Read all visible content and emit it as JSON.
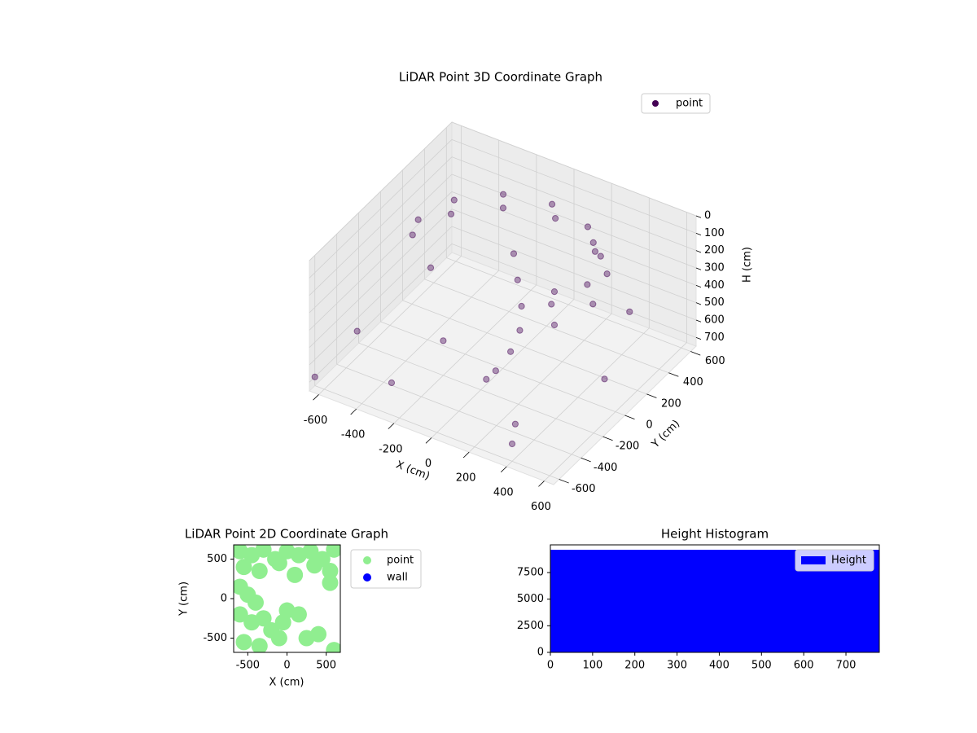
{
  "chart_data": [
    {
      "type": "scatter3d",
      "title": "LiDAR Point 3D Coordinate Graph",
      "xlabel": "X (cm)",
      "ylabel": "Y (cm)",
      "zlabel": "H (cm)",
      "xlim": [
        -650,
        650
      ],
      "ylim": [
        -650,
        650
      ],
      "zlim": [
        750,
        0
      ],
      "xticks": [
        -600,
        -400,
        -200,
        0,
        200,
        400,
        600
      ],
      "yticks": [
        -600,
        -400,
        -200,
        0,
        200,
        400,
        600
      ],
      "zticks": [
        0,
        100,
        200,
        300,
        400,
        500,
        600,
        700
      ],
      "legend": "upper right",
      "series": [
        {
          "name": "point",
          "color": "#440154",
          "x": [
            -450,
            -390,
            -225,
            0,
            225,
            390,
            450,
            390,
            -480,
            -415,
            -240,
            0,
            240,
            415,
            480,
            415,
            0,
            50,
            100,
            120,
            100,
            50,
            0,
            -600,
            -500,
            300,
            500,
            -300,
            200,
            600,
            -650,
            400,
            -200,
            100
          ],
          "y": [
            0,
            225,
            390,
            450,
            390,
            225,
            0,
            -225,
            0,
            240,
            415,
            480,
            415,
            240,
            0,
            -240,
            100,
            50,
            0,
            -50,
            -100,
            -150,
            -150,
            -300,
            200,
            -400,
            300,
            -500,
            500,
            -100,
            -600,
            -600,
            -200,
            300
          ],
          "z": [
            80,
            80,
            80,
            80,
            80,
            80,
            80,
            80,
            180,
            180,
            180,
            180,
            180,
            180,
            180,
            180,
            150,
            250,
            350,
            450,
            550,
            650,
            720,
            600,
            500,
            700,
            400,
            650,
            300,
            500,
            700,
            650,
            550,
            450
          ]
        }
      ]
    },
    {
      "type": "scatter",
      "title": "LiDAR Point 2D Coordinate Graph",
      "xlabel": "X (cm)",
      "ylabel": "Y (cm)",
      "xlim": [
        -680,
        680
      ],
      "ylim": [
        -680,
        680
      ],
      "xticks": [
        -500,
        0,
        500
      ],
      "yticks": [
        -500,
        0,
        500
      ],
      "legend": "outside right",
      "series": [
        {
          "name": "point",
          "color": "#90ee90",
          "x": [
            -600,
            -450,
            -300,
            -150,
            0,
            150,
            300,
            450,
            600,
            -550,
            -350,
            -100,
            100,
            350,
            550,
            -600,
            -500,
            -400,
            -600,
            -450,
            -300,
            -200,
            -100,
            -50,
            0,
            150,
            250,
            400,
            -550,
            -350,
            550,
            600
          ],
          "y": [
            600,
            550,
            620,
            500,
            600,
            550,
            600,
            500,
            620,
            400,
            350,
            450,
            300,
            420,
            350,
            150,
            50,
            -50,
            -200,
            -300,
            -250,
            -400,
            -500,
            -300,
            -150,
            -200,
            -500,
            -450,
            -550,
            -600,
            200,
            -650
          ]
        },
        {
          "name": "wall",
          "color": "#0000ff",
          "x": [],
          "y": []
        }
      ]
    },
    {
      "type": "histogram",
      "title": "Height Histogram",
      "name": "Height",
      "color": "#0000ff",
      "bins": [
        0,
        779
      ],
      "counts": [
        9640
      ],
      "xlim": [
        0,
        779
      ],
      "ylim": [
        0,
        10100
      ],
      "xticks": [
        0,
        100,
        200,
        300,
        400,
        500,
        600,
        700
      ],
      "yticks": [
        0,
        2500,
        5000,
        7500
      ],
      "legend": "upper right"
    }
  ]
}
